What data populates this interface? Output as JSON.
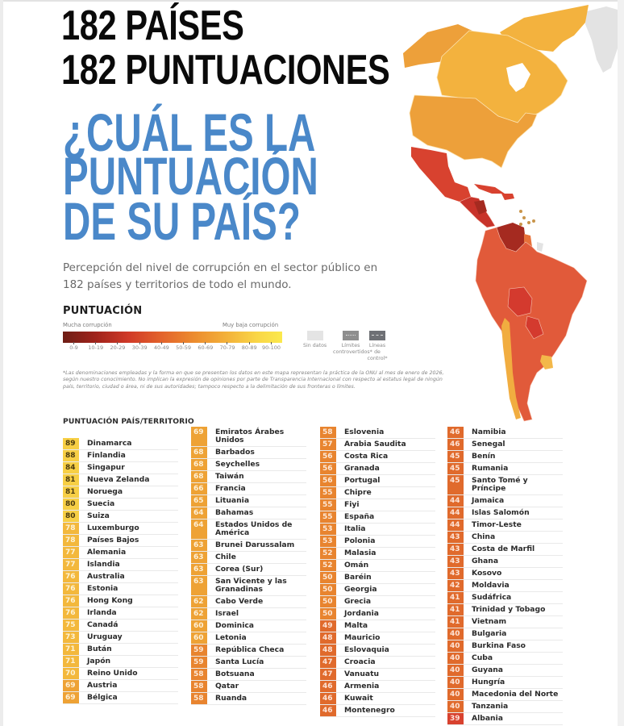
{
  "header": {
    "title_line1": "182 PAÍSES",
    "title_line2": "182 PUNTUACIONES",
    "question_line1": "¿CUÁL ES LA",
    "question_line2": "PUNTUACIÓN",
    "question_line3": "DE SU PAÍS?",
    "subtitle": "Percepción del nivel de corrupción en el sector público en 182 países y territorios de todo el mundo."
  },
  "legend": {
    "title": "PUNTUACIÓN",
    "low_label": "Mucha corrupción",
    "high_label": "Muy baja corrupción",
    "ranges": [
      "0-9",
      "10-19",
      "20-29",
      "30-39",
      "40-49",
      "50-59",
      "60-69",
      "70-79",
      "80-89",
      "90-100"
    ],
    "range_colors": [
      "#6e1e16",
      "#8f2119",
      "#b82b20",
      "#d03a28",
      "#e3632b",
      "#ec8c2e",
      "#f0a533",
      "#f3b83c",
      "#f7d044",
      "#fbe94d"
    ],
    "extras": [
      {
        "label": "Sin datos",
        "color": "#e4e4e4"
      },
      {
        "label": "Límites controvertidos*",
        "color": "#8e8e8e"
      },
      {
        "label": "Líneas de control*",
        "color": "#6e7075"
      }
    ]
  },
  "disclaimer": "*Las denominaciones empleadas y la forma en que se presentan los datos en este mapa representan la práctica de la ONU al mes de enero de 2026, según nuestro conocimiento. No implican la expresión de opiniones por parte de Transparencia Internacional con respecto al estatus legal de ningún país, territorio, ciudad o área, ni de sus autoridades; tampoco respecto a la delimitación de sus fronteras o límites.",
  "map": {
    "region": "Americas",
    "colors": {
      "canada": "#f3b23e",
      "usa": "#eda03a",
      "alaska": "#eda03a",
      "greenland": "#e3e3e3",
      "mexico": "#d8422f",
      "central_america": "#c8332a",
      "venezuela": "#a52a20",
      "south_america": "#e15a3a",
      "bolivia_paraguay": "#d43a2e",
      "chile": "#f1ad40",
      "uruguay": "#f3b84a"
    }
  },
  "table": {
    "title": "PUNTUACIÓN PAÍS/TERRITORIO",
    "columns": [
      [
        {
          "score": "89",
          "name": "Dinamarca"
        },
        {
          "score": "88",
          "name": "Finlandia"
        },
        {
          "score": "84",
          "name": "Singapur"
        },
        {
          "score": "81",
          "name": "Nueva Zelanda"
        },
        {
          "score": "81",
          "name": "Noruega"
        },
        {
          "score": "80",
          "name": "Suecia"
        },
        {
          "score": "80",
          "name": "Suiza"
        },
        {
          "score": "78",
          "name": "Luxemburgo"
        },
        {
          "score": "78",
          "name": "Países Bajos"
        },
        {
          "score": "77",
          "name": "Alemania"
        },
        {
          "score": "77",
          "name": "Islandia"
        },
        {
          "score": "76",
          "name": "Australia"
        },
        {
          "score": "76",
          "name": "Estonia"
        },
        {
          "score": "76",
          "name": "Hong Kong"
        },
        {
          "score": "76",
          "name": "Irlanda"
        },
        {
          "score": "75",
          "name": "Canadá"
        },
        {
          "score": "73",
          "name": "Uruguay"
        },
        {
          "score": "71",
          "name": "Bután"
        },
        {
          "score": "71",
          "name": "Japón"
        },
        {
          "score": "70",
          "name": "Reino Unido"
        },
        {
          "score": "69",
          "name": "Austria"
        },
        {
          "score": "69",
          "name": "Bélgica"
        }
      ],
      [
        {
          "score": "69",
          "name": "Emiratos Árabes Unidos"
        },
        {
          "score": "68",
          "name": "Barbados"
        },
        {
          "score": "68",
          "name": "Seychelles"
        },
        {
          "score": "68",
          "name": "Taiwán"
        },
        {
          "score": "66",
          "name": "Francia"
        },
        {
          "score": "65",
          "name": "Lituania"
        },
        {
          "score": "64",
          "name": "Bahamas"
        },
        {
          "score": "64",
          "name": "Estados Unidos de América"
        },
        {
          "score": "63",
          "name": "Brunei Darussalam"
        },
        {
          "score": "63",
          "name": "Chile"
        },
        {
          "score": "63",
          "name": "Corea (Sur)"
        },
        {
          "score": "63",
          "name": "San Vicente y las Granadinas"
        },
        {
          "score": "62",
          "name": "Cabo Verde"
        },
        {
          "score": "62",
          "name": "Israel"
        },
        {
          "score": "60",
          "name": "Dominica"
        },
        {
          "score": "60",
          "name": "Letonia"
        },
        {
          "score": "59",
          "name": "República Checa"
        },
        {
          "score": "59",
          "name": "Santa Lucía"
        },
        {
          "score": "58",
          "name": "Botsuana"
        },
        {
          "score": "58",
          "name": "Qatar"
        },
        {
          "score": "58",
          "name": "Ruanda"
        }
      ],
      [
        {
          "score": "58",
          "name": "Eslovenia"
        },
        {
          "score": "57",
          "name": "Arabia Saudita"
        },
        {
          "score": "56",
          "name": "Costa Rica"
        },
        {
          "score": "56",
          "name": "Granada"
        },
        {
          "score": "56",
          "name": "Portugal"
        },
        {
          "score": "55",
          "name": "Chipre"
        },
        {
          "score": "55",
          "name": "Fiyi"
        },
        {
          "score": "55",
          "name": "España"
        },
        {
          "score": "53",
          "name": "Italia"
        },
        {
          "score": "53",
          "name": "Polonia"
        },
        {
          "score": "52",
          "name": "Malasia"
        },
        {
          "score": "52",
          "name": "Omán"
        },
        {
          "score": "50",
          "name": "Baréin"
        },
        {
          "score": "50",
          "name": "Georgia"
        },
        {
          "score": "50",
          "name": "Grecia"
        },
        {
          "score": "50",
          "name": "Jordania"
        },
        {
          "score": "49",
          "name": "Malta"
        },
        {
          "score": "48",
          "name": "Mauricio"
        },
        {
          "score": "48",
          "name": "Eslovaquia"
        },
        {
          "score": "47",
          "name": "Croacia"
        },
        {
          "score": "47",
          "name": "Vanuatu"
        },
        {
          "score": "46",
          "name": "Armenia"
        },
        {
          "score": "46",
          "name": "Kuwait"
        },
        {
          "score": "46",
          "name": "Montenegro"
        }
      ],
      [
        {
          "score": "46",
          "name": "Namibia"
        },
        {
          "score": "46",
          "name": "Senegal"
        },
        {
          "score": "45",
          "name": "Benín"
        },
        {
          "score": "45",
          "name": "Rumania"
        },
        {
          "score": "45",
          "name": "Santo Tomé y Príncipe"
        },
        {
          "score": "44",
          "name": "Jamaica"
        },
        {
          "score": "44",
          "name": "Islas Salomón"
        },
        {
          "score": "44",
          "name": "Timor-Leste"
        },
        {
          "score": "43",
          "name": "China"
        },
        {
          "score": "43",
          "name": "Costa de Marfil"
        },
        {
          "score": "43",
          "name": "Ghana"
        },
        {
          "score": "43",
          "name": "Kosovo"
        },
        {
          "score": "42",
          "name": "Moldavia"
        },
        {
          "score": "41",
          "name": "Sudáfrica"
        },
        {
          "score": "41",
          "name": "Trinidad y Tobago"
        },
        {
          "score": "41",
          "name": "Vietnam"
        },
        {
          "score": "40",
          "name": "Bulgaria"
        },
        {
          "score": "40",
          "name": "Burkina Faso"
        },
        {
          "score": "40",
          "name": "Cuba"
        },
        {
          "score": "40",
          "name": "Guyana"
        },
        {
          "score": "40",
          "name": "Hungría"
        },
        {
          "score": "40",
          "name": "Macedonia del Norte"
        },
        {
          "score": "40",
          "name": "Tanzania"
        },
        {
          "score": "39",
          "name": "Albania"
        }
      ]
    ]
  }
}
